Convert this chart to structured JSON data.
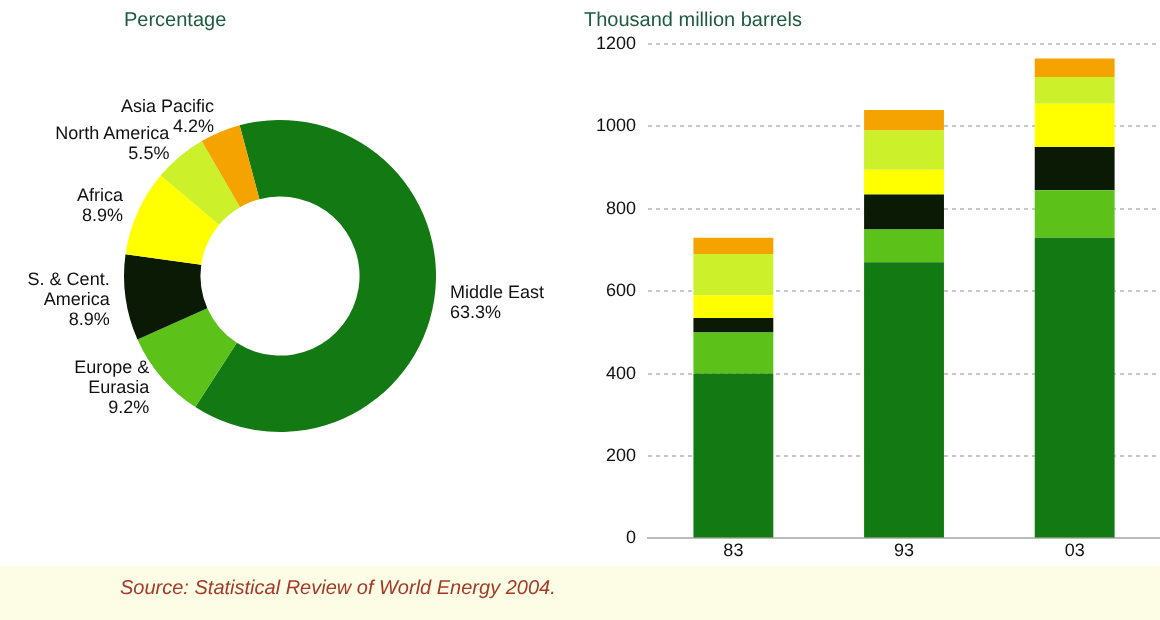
{
  "chart_data": [
    {
      "type": "donut",
      "title": "Percentage",
      "categories": [
        "Middle East",
        "Europe & Eurasia",
        "S. & Cent. America",
        "Africa",
        "North America",
        "Asia Pacific"
      ],
      "values": [
        63.3,
        9.2,
        8.9,
        8.9,
        5.5,
        4.2
      ],
      "value_labels": [
        "63.3%",
        "9.2%",
        "8.9%",
        "8.9%",
        "5.5%",
        "4.2%"
      ],
      "colors": [
        "#137a13",
        "#5cc21a",
        "#0a1a05",
        "#ffff00",
        "#ccf02a",
        "#f5a300"
      ],
      "legend": false
    },
    {
      "type": "bar",
      "title": "Thousand million barrels",
      "categories": [
        "83",
        "93",
        "03"
      ],
      "stacked": true,
      "series": [
        {
          "color": "#137a13",
          "values": [
            400,
            670,
            730
          ]
        },
        {
          "color": "#5cc21a",
          "values": [
            100,
            80,
            115
          ]
        },
        {
          "color": "#0a1a05",
          "values": [
            35,
            85,
            105
          ]
        },
        {
          "color": "#ffff00",
          "values": [
            55,
            60,
            105
          ]
        },
        {
          "color": "#ccf02a",
          "values": [
            100,
            95,
            65
          ]
        },
        {
          "color": "#f5a300",
          "values": [
            40,
            50,
            45
          ]
        }
      ],
      "ylim": [
        0,
        1200
      ],
      "yticks": [
        0,
        200,
        400,
        600,
        800,
        1000,
        1200
      ],
      "grid": "y",
      "legend": false,
      "annotations": [
        "Source: Statistical Review of World Energy 2004."
      ]
    }
  ]
}
